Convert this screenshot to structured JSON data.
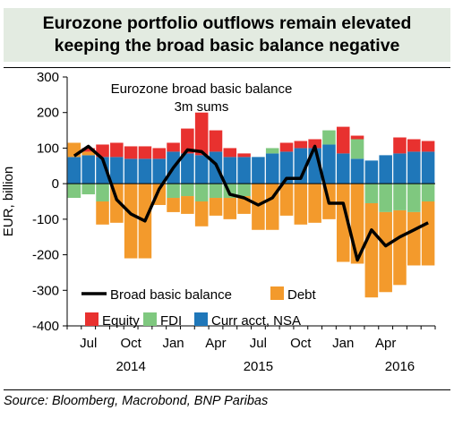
{
  "chart_data": {
    "type": "bar",
    "stacked": true,
    "title": "Eurozone portfolio outflows remain elevated",
    "subtitle": "keeping the broad basic balance negative",
    "annotation": "Eurozone broad basic balance, 3m sums",
    "ylabel": "EUR, billion",
    "ylim": [
      -400,
      300
    ],
    "yticks": [
      "300",
      "200",
      "100",
      "0",
      "-100",
      "-200",
      "-300",
      "-400"
    ],
    "x": [
      "2014-06",
      "2014-07",
      "2014-08",
      "2014-09",
      "2014-10",
      "2014-11",
      "2014-12",
      "2015-01",
      "2015-02",
      "2015-03",
      "2015-04",
      "2015-05",
      "2015-06",
      "2015-07",
      "2015-08",
      "2015-09",
      "2015-10",
      "2015-11",
      "2015-12",
      "2016-01",
      "2016-02",
      "2016-03",
      "2016-04",
      "2016-05",
      "2016-06",
      "2016-07"
    ],
    "month_ticks": [
      {
        "label": "Jul",
        "x": "2014-07"
      },
      {
        "label": "Oct",
        "x": "2014-10"
      },
      {
        "label": "Jan",
        "x": "2015-01"
      },
      {
        "label": "Apr",
        "x": "2015-04"
      },
      {
        "label": "Jul",
        "x": "2015-07"
      },
      {
        "label": "Oct",
        "x": "2015-10"
      },
      {
        "label": "Jan",
        "x": "2016-01"
      },
      {
        "label": "Apr",
        "x": "2016-04"
      }
    ],
    "year_ticks": [
      {
        "label": "2014",
        "x": "2014-10"
      },
      {
        "label": "2015",
        "x": "2015-07"
      },
      {
        "label": "2016",
        "x": "2016-05"
      }
    ],
    "series": [
      {
        "name": "Curr acct, NSA",
        "color": "#1f77b9",
        "values": [
          75,
          80,
          75,
          75,
          70,
          70,
          70,
          90,
          85,
          80,
          90,
          75,
          75,
          75,
          85,
          90,
          100,
          100,
          110,
          85,
          70,
          65,
          80,
          85,
          90,
          90
        ]
      },
      {
        "name": "FDI",
        "color": "#7fc87f",
        "values": [
          -40,
          -30,
          -50,
          0,
          0,
          0,
          0,
          -40,
          -35,
          -50,
          -40,
          -40,
          -35,
          0,
          15,
          0,
          0,
          0,
          40,
          0,
          55,
          -55,
          -80,
          -75,
          -80,
          -50
        ]
      },
      {
        "name": "Debt",
        "color": "#f39a2c",
        "values": [
          40,
          10,
          -65,
          -110,
          -210,
          -210,
          -60,
          -40,
          -50,
          -70,
          -50,
          -60,
          -50,
          -130,
          -130,
          -90,
          -115,
          -110,
          -100,
          -220,
          -225,
          -265,
          -225,
          -210,
          -150,
          -180
        ]
      },
      {
        "name": "Equity",
        "color": "#e8312f",
        "values": [
          0,
          10,
          35,
          40,
          35,
          35,
          30,
          25,
          70,
          120,
          60,
          25,
          10,
          0,
          0,
          25,
          20,
          25,
          0,
          75,
          10,
          0,
          0,
          45,
          35,
          30
        ]
      }
    ],
    "line": {
      "name": "Broad basic balance",
      "color": "#000000",
      "values": [
        78,
        105,
        70,
        -45,
        -85,
        -105,
        -15,
        45,
        95,
        90,
        55,
        -30,
        -40,
        -60,
        -40,
        15,
        15,
        105,
        -55,
        -55,
        -215,
        -130,
        -175,
        -150,
        -130,
        -110
      ]
    },
    "legend": {
      "position": "bottom-left",
      "rows": [
        [
          "Broad basic balance",
          "Debt"
        ],
        [
          "Equity",
          "FDI",
          "Curr acct, NSA"
        ]
      ]
    }
  },
  "source": "Source: Bloomberg, Macrobond, BNP Paribas"
}
